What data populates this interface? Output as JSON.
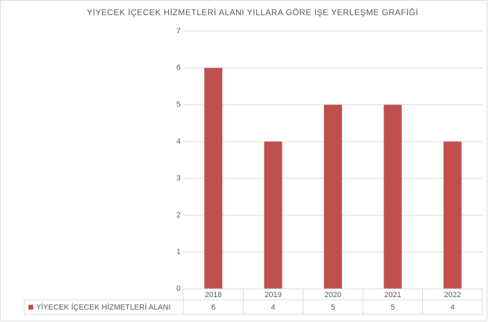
{
  "chart_data": {
    "type": "bar",
    "title": "YİYECEK İÇECEK HİZMETLERİ ALANI YILLARA GÖRE İŞE YERLEŞME GRAFİĞİ",
    "categories": [
      "2018",
      "2019",
      "2020",
      "2021",
      "2022"
    ],
    "series": [
      {
        "name": "YİYECEK İÇECEK HİZMETLERİ ALANI",
        "color": "#c0504d",
        "values": [
          6,
          4,
          5,
          5,
          4
        ]
      }
    ],
    "ylim": [
      0,
      7
    ],
    "yticks": [
      0,
      1,
      2,
      3,
      4,
      5,
      6,
      7
    ],
    "grid": true,
    "data_table": true
  }
}
